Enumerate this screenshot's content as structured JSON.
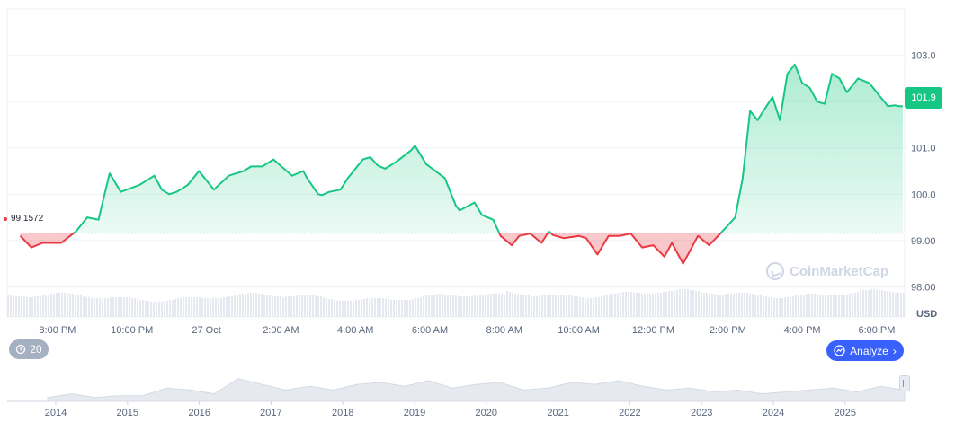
{
  "chart_data": {
    "type": "area",
    "unit": "USD",
    "y_ticks": [
      "103.0",
      "102.0",
      "101.0",
      "100.0",
      "99.00",
      "98.00"
    ],
    "ylim": [
      97.35,
      104.0
    ],
    "baseline": 99.1572,
    "baseline_label": "99.1572",
    "current_price": 101.9,
    "current_price_label": "101.9",
    "x_ticks": [
      "8:00 PM",
      "10:00 PM",
      "27 Oct",
      "2:00 AM",
      "4:00 AM",
      "6:00 AM",
      "8:00 AM",
      "10:00 AM",
      "12:00 PM",
      "2:00 PM",
      "4:00 PM",
      "6:00 PM"
    ],
    "x_hours": [
      20,
      22,
      24,
      26,
      28,
      30,
      32,
      34,
      36,
      38,
      40,
      42
    ],
    "xlim": [
      18.65,
      42.75
    ],
    "series": [
      {
        "x": [
          19.0,
          19.3,
          19.6,
          20.1,
          20.5,
          20.8,
          21.1,
          21.4,
          21.7,
          22.2,
          22.5,
          22.6,
          22.8,
          23.0,
          23.2,
          23.5,
          23.8,
          24.2,
          24.6,
          24.8,
          25.0,
          25.2,
          25.5,
          25.8,
          26.3,
          26.6,
          26.7,
          27.0,
          27.1,
          27.3,
          27.6,
          27.8,
          28.2,
          28.4,
          28.6,
          28.8,
          29.1,
          29.5,
          29.6,
          29.9,
          30.4,
          30.7,
          30.8,
          31.2,
          31.4,
          31.7,
          31.9,
          32.2,
          32.4,
          32.7,
          33.0,
          33.2,
          33.3,
          33.6,
          34.0,
          34.2,
          34.5,
          34.8,
          35.1,
          35.4,
          35.7,
          36.0,
          36.3,
          36.5,
          36.8,
          37.2,
          37.5,
          37.8,
          38.2,
          38.4,
          38.6,
          38.8,
          39.0,
          39.2,
          39.4,
          39.6,
          39.8,
          39.9,
          40.0,
          40.2,
          40.4,
          40.6,
          40.8,
          41.0,
          41.2,
          41.4,
          41.5,
          41.8,
          42.1,
          42.3,
          42.5,
          42.6,
          42.7
        ],
        "y": [
          99.1,
          98.85,
          98.95,
          98.95,
          99.2,
          99.5,
          99.45,
          100.45,
          100.05,
          100.2,
          100.35,
          100.4,
          100.1,
          100.0,
          100.05,
          100.2,
          100.5,
          100.1,
          100.4,
          100.45,
          100.5,
          100.6,
          100.6,
          100.75,
          100.4,
          100.5,
          100.35,
          100.0,
          99.98,
          100.05,
          100.1,
          100.35,
          100.75,
          100.8,
          100.62,
          100.55,
          100.7,
          100.95,
          101.05,
          100.65,
          100.35,
          99.75,
          99.65,
          99.82,
          99.55,
          99.45,
          99.1,
          98.9,
          99.1,
          99.15,
          98.95,
          99.2,
          99.12,
          99.05,
          99.1,
          99.05,
          98.7,
          99.1,
          99.1,
          99.15,
          98.85,
          98.9,
          98.65,
          98.95,
          98.5,
          99.1,
          98.9,
          99.15,
          99.5,
          100.35,
          101.8,
          101.6,
          101.85,
          102.1,
          101.6,
          102.6,
          102.8,
          102.6,
          102.4,
          102.3,
          102.0,
          101.95,
          102.6,
          102.5,
          102.2,
          102.4,
          102.5,
          102.4,
          102.1,
          101.9,
          101.92,
          101.9,
          101.9
        ]
      }
    ],
    "navigator_ticks": [
      "2014",
      "2015",
      "2016",
      "2017",
      "2018",
      "2019",
      "2020",
      "2021",
      "2022",
      "2023",
      "2024",
      "2025"
    ],
    "navigator_values": [
      0.1,
      0.2,
      0.1,
      0.15,
      0.15,
      0.35,
      0.3,
      0.2,
      0.6,
      0.45,
      0.3,
      0.4,
      0.3,
      0.45,
      0.5,
      0.4,
      0.55,
      0.35,
      0.45,
      0.5,
      0.3,
      0.35,
      0.5,
      0.45,
      0.55,
      0.4,
      0.3,
      0.35,
      0.25,
      0.3,
      0.2,
      0.25,
      0.3,
      0.35,
      0.25,
      0.4,
      0.3
    ],
    "watermark": "CoinMarketCap",
    "colors": {
      "up": "#16c784",
      "down": "#ea3943",
      "axis": "#58667e",
      "grid": "#eff2f5",
      "analyze": "#3861fb"
    }
  },
  "controls": {
    "history_label": "20",
    "analyze_label": "Analyze",
    "history_icon": "history-icon",
    "analyze_icon": "analyze-icon"
  }
}
